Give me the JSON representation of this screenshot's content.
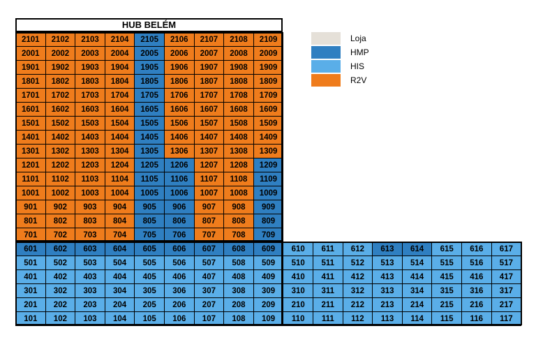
{
  "title": "HUB BELÉM",
  "colors": {
    "Loja": "#e5e0d8",
    "HMP": "#2f7fc1",
    "HIS": "#5aaee8",
    "R2V": "#ef7c1c"
  },
  "legend": [
    {
      "label": "Loja",
      "key": "Loja"
    },
    {
      "label": "HMP",
      "key": "HMP"
    },
    {
      "label": "HIS",
      "key": "HIS"
    },
    {
      "label": "R2V",
      "key": "R2V"
    }
  ],
  "tower_rows": [
    {
      "units": [
        "2101",
        "2102",
        "2103",
        "2104",
        "2105",
        "2106",
        "2107",
        "2108",
        "2109"
      ],
      "types": [
        "R2V",
        "R2V",
        "R2V",
        "R2V",
        "HMP",
        "R2V",
        "R2V",
        "R2V",
        "R2V"
      ]
    },
    {
      "units": [
        "2001",
        "2002",
        "2003",
        "2004",
        "2005",
        "2006",
        "2007",
        "2008",
        "2009"
      ],
      "types": [
        "R2V",
        "R2V",
        "R2V",
        "R2V",
        "HMP",
        "R2V",
        "R2V",
        "R2V",
        "R2V"
      ]
    },
    {
      "units": [
        "1901",
        "1902",
        "1903",
        "1904",
        "1905",
        "1906",
        "1907",
        "1908",
        "1909"
      ],
      "types": [
        "R2V",
        "R2V",
        "R2V",
        "R2V",
        "HMP",
        "R2V",
        "R2V",
        "R2V",
        "R2V"
      ]
    },
    {
      "units": [
        "1801",
        "1802",
        "1803",
        "1804",
        "1805",
        "1806",
        "1807",
        "1808",
        "1809"
      ],
      "types": [
        "R2V",
        "R2V",
        "R2V",
        "R2V",
        "HMP",
        "R2V",
        "R2V",
        "R2V",
        "R2V"
      ]
    },
    {
      "units": [
        "1701",
        "1702",
        "1703",
        "1704",
        "1705",
        "1706",
        "1707",
        "1708",
        "1709"
      ],
      "types": [
        "R2V",
        "R2V",
        "R2V",
        "R2V",
        "HMP",
        "R2V",
        "R2V",
        "R2V",
        "R2V"
      ]
    },
    {
      "units": [
        "1601",
        "1602",
        "1603",
        "1604",
        "1605",
        "1606",
        "1607",
        "1608",
        "1609"
      ],
      "types": [
        "R2V",
        "R2V",
        "R2V",
        "R2V",
        "HMP",
        "R2V",
        "R2V",
        "R2V",
        "R2V"
      ]
    },
    {
      "units": [
        "1501",
        "1502",
        "1503",
        "1504",
        "1505",
        "1506",
        "1507",
        "1508",
        "1509"
      ],
      "types": [
        "R2V",
        "R2V",
        "R2V",
        "R2V",
        "HMP",
        "R2V",
        "R2V",
        "R2V",
        "R2V"
      ]
    },
    {
      "units": [
        "1401",
        "1402",
        "1403",
        "1404",
        "1405",
        "1406",
        "1407",
        "1408",
        "1409"
      ],
      "types": [
        "R2V",
        "R2V",
        "R2V",
        "R2V",
        "HMP",
        "R2V",
        "R2V",
        "R2V",
        "R2V"
      ]
    },
    {
      "units": [
        "1301",
        "1302",
        "1303",
        "1304",
        "1305",
        "1306",
        "1307",
        "1308",
        "1309"
      ],
      "types": [
        "R2V",
        "R2V",
        "R2V",
        "R2V",
        "HMP",
        "R2V",
        "R2V",
        "R2V",
        "R2V"
      ]
    },
    {
      "units": [
        "1201",
        "1202",
        "1203",
        "1204",
        "1205",
        "1206",
        "1207",
        "1208",
        "1209"
      ],
      "types": [
        "R2V",
        "R2V",
        "R2V",
        "R2V",
        "HMP",
        "HMP",
        "R2V",
        "R2V",
        "HMP"
      ]
    },
    {
      "units": [
        "1101",
        "1102",
        "1103",
        "1104",
        "1105",
        "1106",
        "1107",
        "1108",
        "1109"
      ],
      "types": [
        "R2V",
        "R2V",
        "R2V",
        "R2V",
        "HMP",
        "HMP",
        "R2V",
        "R2V",
        "HMP"
      ]
    },
    {
      "units": [
        "1001",
        "1002",
        "1003",
        "1004",
        "1005",
        "1006",
        "1007",
        "1008",
        "1009"
      ],
      "types": [
        "R2V",
        "R2V",
        "R2V",
        "R2V",
        "HMP",
        "HMP",
        "R2V",
        "R2V",
        "HMP"
      ]
    },
    {
      "units": [
        "901",
        "902",
        "903",
        "904",
        "905",
        "906",
        "907",
        "908",
        "909"
      ],
      "types": [
        "R2V",
        "R2V",
        "R2V",
        "R2V",
        "HMP",
        "HMP",
        "R2V",
        "R2V",
        "HMP"
      ]
    },
    {
      "units": [
        "801",
        "802",
        "803",
        "804",
        "805",
        "806",
        "807",
        "808",
        "809"
      ],
      "types": [
        "R2V",
        "R2V",
        "R2V",
        "R2V",
        "HMP",
        "HMP",
        "R2V",
        "R2V",
        "HMP"
      ]
    },
    {
      "units": [
        "701",
        "702",
        "703",
        "704",
        "705",
        "706",
        "707",
        "708",
        "709"
      ],
      "types": [
        "R2V",
        "R2V",
        "R2V",
        "R2V",
        "HMP",
        "HMP",
        "R2V",
        "R2V",
        "HMP"
      ]
    }
  ],
  "base_rows": [
    {
      "units": [
        "601",
        "602",
        "603",
        "604",
        "605",
        "606",
        "607",
        "608",
        "609",
        "610",
        "611",
        "612",
        "613",
        "614",
        "615",
        "616",
        "617"
      ],
      "types": [
        "HMP",
        "HMP",
        "HMP",
        "HMP",
        "HMP",
        "HMP",
        "HMP",
        "HMP",
        "HMP",
        "HIS",
        "HIS",
        "HIS",
        "HMP",
        "HMP",
        "HIS",
        "HIS",
        "HIS"
      ]
    },
    {
      "units": [
        "501",
        "502",
        "503",
        "504",
        "505",
        "506",
        "507",
        "508",
        "509",
        "510",
        "511",
        "512",
        "513",
        "514",
        "515",
        "516",
        "517"
      ],
      "types": [
        "HIS",
        "HIS",
        "HIS",
        "HIS",
        "HIS",
        "HIS",
        "HIS",
        "HIS",
        "HIS",
        "HIS",
        "HIS",
        "HIS",
        "HIS",
        "HIS",
        "HIS",
        "HIS",
        "HIS"
      ]
    },
    {
      "units": [
        "401",
        "402",
        "403",
        "404",
        "405",
        "406",
        "407",
        "408",
        "409",
        "410",
        "411",
        "412",
        "413",
        "414",
        "415",
        "416",
        "417"
      ],
      "types": [
        "HIS",
        "HIS",
        "HIS",
        "HIS",
        "HIS",
        "HIS",
        "HIS",
        "HIS",
        "HIS",
        "HIS",
        "HIS",
        "HIS",
        "HIS",
        "HIS",
        "HIS",
        "HIS",
        "HIS"
      ]
    },
    {
      "units": [
        "301",
        "302",
        "303",
        "304",
        "305",
        "306",
        "307",
        "308",
        "309",
        "310",
        "311",
        "312",
        "313",
        "314",
        "315",
        "316",
        "317"
      ],
      "types": [
        "HIS",
        "HIS",
        "HIS",
        "HIS",
        "HIS",
        "HIS",
        "HIS",
        "HIS",
        "HIS",
        "HIS",
        "HIS",
        "HIS",
        "HIS",
        "HIS",
        "HIS",
        "HIS",
        "HIS"
      ]
    },
    {
      "units": [
        "201",
        "202",
        "203",
        "204",
        "205",
        "206",
        "207",
        "208",
        "209",
        "210",
        "211",
        "212",
        "213",
        "214",
        "215",
        "216",
        "217"
      ],
      "types": [
        "HIS",
        "HIS",
        "HIS",
        "HIS",
        "HIS",
        "HIS",
        "HIS",
        "HIS",
        "HIS",
        "HIS",
        "HIS",
        "HIS",
        "HIS",
        "HIS",
        "HIS",
        "HIS",
        "HIS"
      ]
    },
    {
      "units": [
        "101",
        "102",
        "103",
        "104",
        "105",
        "106",
        "107",
        "108",
        "109",
        "110",
        "111",
        "112",
        "113",
        "114",
        "115",
        "116",
        "117"
      ],
      "types": [
        "HIS",
        "HIS",
        "HIS",
        "HIS",
        "HIS",
        "HIS",
        "HIS",
        "HIS",
        "HIS",
        "HIS",
        "HIS",
        "HIS",
        "HIS",
        "HIS",
        "HIS",
        "HIS",
        "HIS"
      ]
    }
  ]
}
